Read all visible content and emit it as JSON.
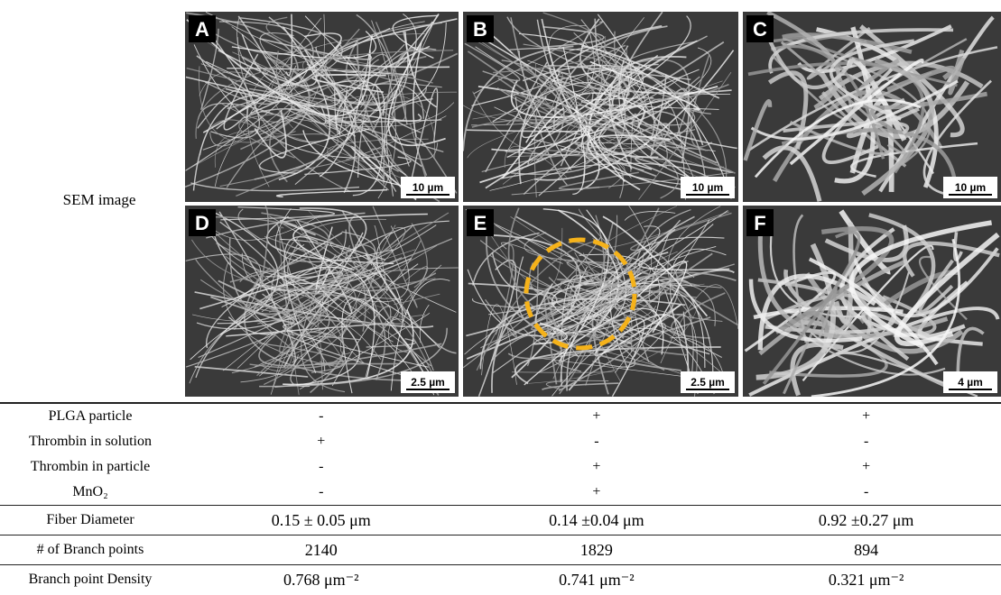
{
  "row_label": "SEM image",
  "panels": [
    {
      "label": "A",
      "scale": "10 µm"
    },
    {
      "label": "B",
      "scale": "10 µm"
    },
    {
      "label": "C",
      "scale": "10 µm"
    },
    {
      "label": "D",
      "scale": "2.5 µm"
    },
    {
      "label": "E",
      "scale": "2.5 µm"
    },
    {
      "label": "F",
      "scale": "4 µm"
    }
  ],
  "table": {
    "rows": [
      [
        "PLGA particle",
        "-",
        "+",
        "+"
      ],
      [
        "Thrombin in solution",
        "+",
        "-",
        "-"
      ],
      [
        "Thrombin in particle",
        "-",
        "+",
        "+"
      ],
      [
        "MnO₂",
        "-",
        "+",
        "-"
      ],
      [
        "Fiber Diameter",
        "0.15 ± 0.05 μm",
        "0.14 ±0.04 μm",
        "0.92 ±0.27 μm"
      ],
      [
        "# of Branch points",
        "2140",
        "1829",
        "894"
      ],
      [
        "Branch point Density",
        "0.768 μm⁻²",
        "0.741 μm⁻²",
        "0.321 μm⁻²"
      ]
    ]
  }
}
